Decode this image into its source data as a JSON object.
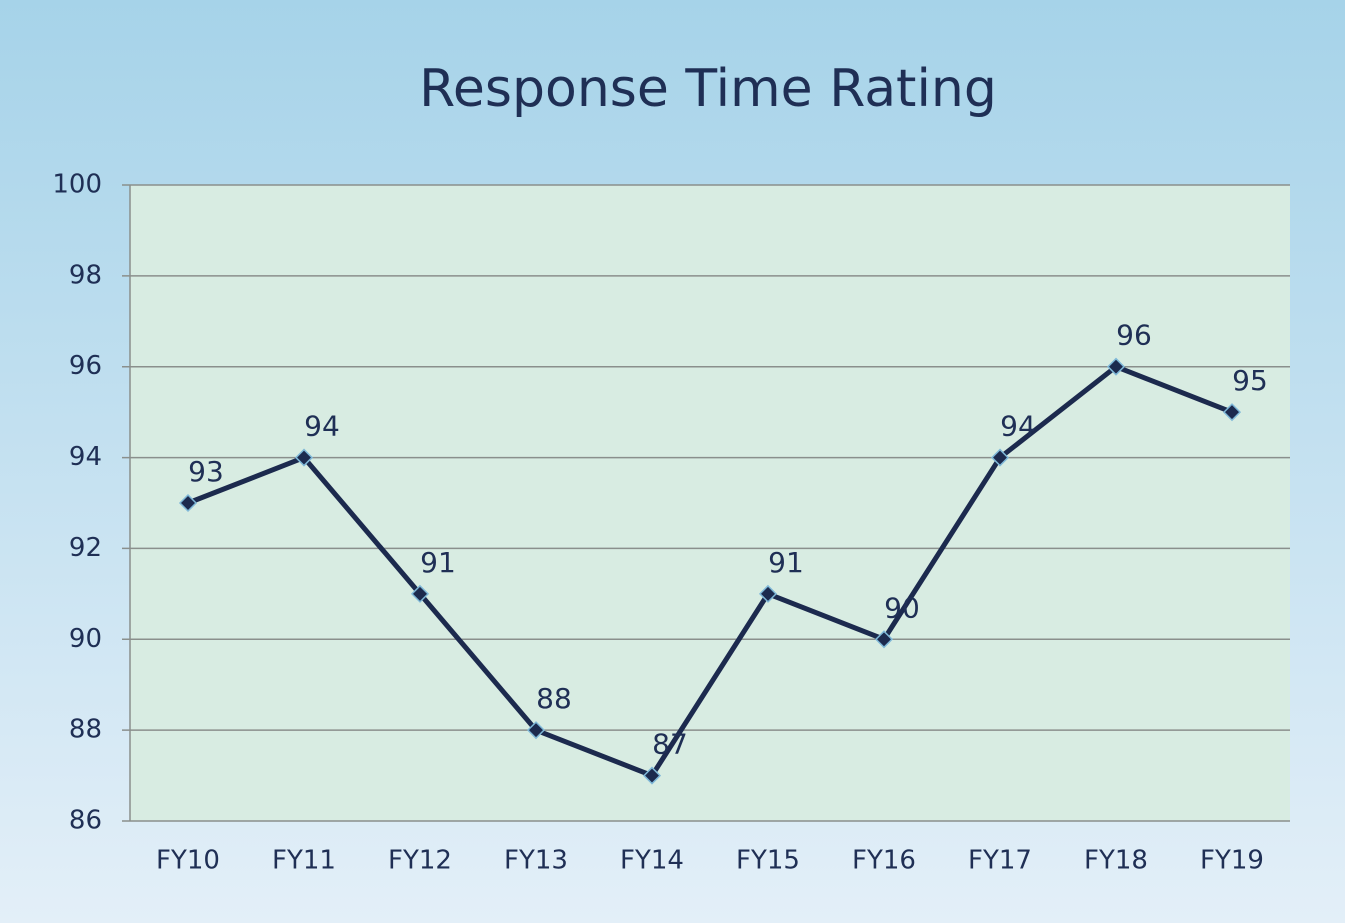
{
  "chart_data": {
    "type": "line",
    "title": "Response Time Rating",
    "categories": [
      "FY10",
      "FY11",
      "FY12",
      "FY13",
      "FY14",
      "FY15",
      "FY16",
      "FY17",
      "FY18",
      "FY19"
    ],
    "values": [
      93,
      94,
      91,
      88,
      87,
      91,
      90,
      94,
      96,
      95
    ],
    "color": "#1c2a4e",
    "ylim": [
      86,
      100
    ],
    "yticks": [
      86,
      88,
      90,
      92,
      94,
      96,
      98,
      100
    ],
    "grid": true
  }
}
